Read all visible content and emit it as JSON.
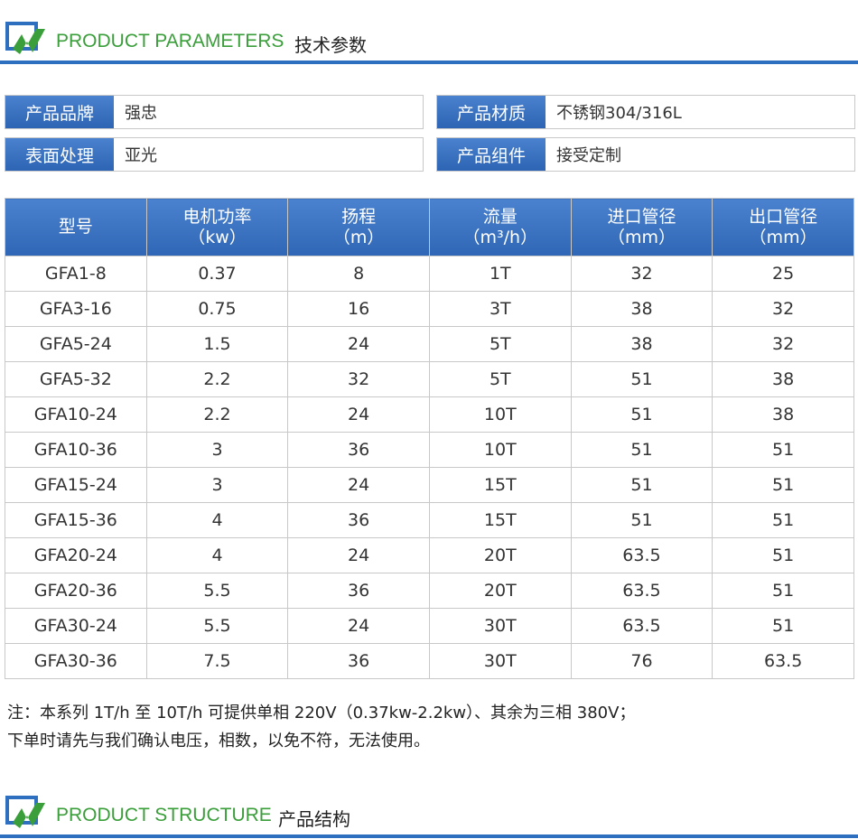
{
  "section1": {
    "title_en": "PRODUCT PARAMETERS",
    "title_cn": "技术参数"
  },
  "info": [
    {
      "label": "产品品牌",
      "value": "强忠"
    },
    {
      "label": "产品材质",
      "value": "不锈钢304/316L"
    },
    {
      "label": "表面处理",
      "value": "亚光"
    },
    {
      "label": "产品组件",
      "value": "接受定制"
    }
  ],
  "table": {
    "headers": [
      {
        "name": "型号"
      },
      {
        "name": "电机功率",
        "unit": "（kw）"
      },
      {
        "name": "扬程",
        "unit": "（m）"
      },
      {
        "name": "流量",
        "unit": "（m³/h）"
      },
      {
        "name": "进口管径",
        "unit": "（mm）"
      },
      {
        "name": "出口管径",
        "unit": "（mm）"
      }
    ],
    "rows": [
      [
        "GFA1-8",
        "0.37",
        "8",
        "1T",
        "32",
        "25"
      ],
      [
        "GFA3-16",
        "0.75",
        "16",
        "3T",
        "38",
        "32"
      ],
      [
        "GFA5-24",
        "1.5",
        "24",
        "5T",
        "38",
        "32"
      ],
      [
        "GFA5-32",
        "2.2",
        "32",
        "5T",
        "51",
        "38"
      ],
      [
        "GFA10-24",
        "2.2",
        "24",
        "10T",
        "51",
        "38"
      ],
      [
        "GFA10-36",
        "3",
        "36",
        "10T",
        "51",
        "51"
      ],
      [
        "GFA15-24",
        "3",
        "24",
        "15T",
        "51",
        "51"
      ],
      [
        "GFA15-36",
        "4",
        "36",
        "15T",
        "51",
        "51"
      ],
      [
        "GFA20-24",
        "4",
        "24",
        "20T",
        "63.5",
        "51"
      ],
      [
        "GFA20-36",
        "5.5",
        "36",
        "20T",
        "63.5",
        "51"
      ],
      [
        "GFA30-24",
        "5.5",
        "24",
        "30T",
        "63.5",
        "51"
      ],
      [
        "GFA30-36",
        "7.5",
        "36",
        "30T",
        "76",
        "63.5"
      ]
    ]
  },
  "notes": [
    "注：本系列 1T/h 至 10T/h 可提供单相 220V（0.37kw-2.2kw）、其余为三相 380V；",
    "下单时请先与我们确认电压，相数，以免不符，无法使用。"
  ],
  "section2": {
    "title_en": "PRODUCT STRUCTURE",
    "title_cn": "产品结构"
  }
}
